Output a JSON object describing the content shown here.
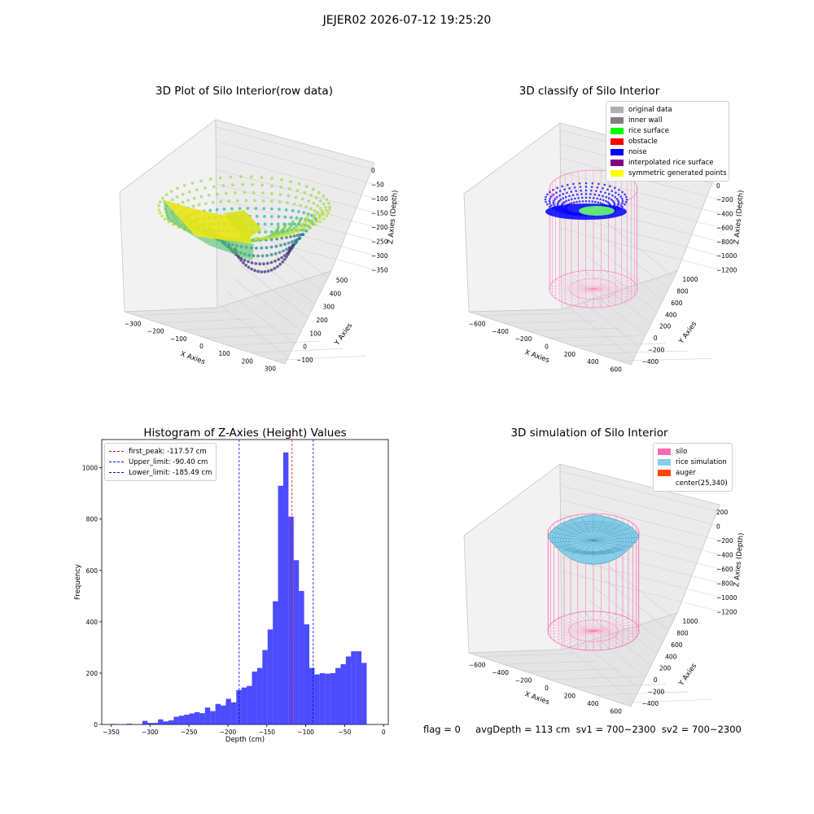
{
  "suptitle": "JEJER02 2026-07-12 19:25:20",
  "panels": {
    "raw": {
      "title": "3D Plot of Silo Interior(row data)",
      "xlabel": "X Axies",
      "ylabel": "Y Axies",
      "zlabel": "Z Axies (Depth)",
      "xticks": [
        "−300",
        "−200",
        "−100",
        "0",
        "100",
        "200",
        "300"
      ],
      "yticks": [
        "−100",
        "0",
        "100",
        "200",
        "300",
        "400",
        "500"
      ],
      "zticks": [
        "0",
        "−50",
        "−100",
        "−150",
        "−200",
        "−250",
        "−300",
        "−350"
      ]
    },
    "classify": {
      "title": "3D classify of Silo Interior",
      "xlabel": "X Axies",
      "ylabel": "Y Axies",
      "zlabel": "Z Axies (Depth)",
      "xticks": [
        "−600",
        "−400",
        "−200",
        "0",
        "200",
        "400",
        "600"
      ],
      "yticks": [
        "−400",
        "−200",
        "0",
        "200",
        "400",
        "600",
        "800",
        "1000"
      ],
      "zticks": [
        "200",
        "0",
        "−200",
        "−400",
        "−600",
        "−800",
        "−1000",
        "−1200"
      ],
      "legend": [
        {
          "label": "original data",
          "color": "#b0b0b0"
        },
        {
          "label": "inner wall",
          "color": "#808080"
        },
        {
          "label": "rice surface",
          "color": "#00ff00"
        },
        {
          "label": "obstacle",
          "color": "#ff0000"
        },
        {
          "label": "noise",
          "color": "#0000ff"
        },
        {
          "label": "interpolated rice surface",
          "color": "#800080"
        },
        {
          "label": "symmetric generated points",
          "color": "#ffff00"
        }
      ]
    },
    "simulation": {
      "title": "3D simulation of Silo Interior",
      "xlabel": "X Axies",
      "ylabel": "Y Axies",
      "zlabel": "Z Axies (Depth)",
      "xticks": [
        "−600",
        "−400",
        "−200",
        "0",
        "200",
        "400",
        "600"
      ],
      "yticks": [
        "−400",
        "−200",
        "0",
        "200",
        "400",
        "600",
        "800",
        "1000"
      ],
      "zticks": [
        "200",
        "0",
        "−200",
        "−400",
        "−600",
        "−800",
        "−1000",
        "−1200"
      ],
      "legend": [
        {
          "label": "silo",
          "color": "#ff69b4"
        },
        {
          "label": "rice simulation",
          "color": "#87ceeb"
        },
        {
          "label": "auger",
          "color": "#ff4500"
        },
        {
          "label": "center(25,340)",
          "color": ""
        }
      ]
    }
  },
  "status_line": "flag = 0     avgDepth = 113 cm  sv1 = 700~2300  sv2 = 700~2300",
  "chart_data": {
    "type": "bar",
    "title": "Histogram of Z-Axies (Height) Values",
    "xlabel": "Depth (cm)",
    "ylabel": "Frequency",
    "xlim": [
      -362,
      6
    ],
    "ylim": [
      0,
      1110
    ],
    "xticks": [
      -350,
      -300,
      -250,
      -200,
      -150,
      -100,
      -50,
      0
    ],
    "yticks": [
      0,
      200,
      400,
      600,
      800,
      1000
    ],
    "bin_width": 6.7,
    "bin_starts": [
      -350,
      -343.3,
      -336.6,
      -329.9,
      -323.2,
      -316.5,
      -309.8,
      -303.1,
      -296.4,
      -289.7,
      -283.0,
      -276.3,
      -269.6,
      -262.9,
      -256.2,
      -249.5,
      -242.8,
      -236.1,
      -229.4,
      -222.7,
      -216.0,
      -209.3,
      -202.6,
      -195.9,
      -189.2,
      -182.5,
      -175.8,
      -169.1,
      -162.4,
      -155.7,
      -149.0,
      -142.3,
      -135.6,
      -128.9,
      -122.2,
      -115.5,
      -108.8,
      -102.1,
      -95.4,
      -88.7,
      -82.0,
      -75.3,
      -68.6,
      -61.9,
      -55.2,
      -48.5,
      -41.8,
      -35.1,
      -28.4,
      -21.7,
      -15.0
    ],
    "values": [
      2,
      0,
      0,
      3,
      0,
      0,
      14,
      6,
      6,
      20,
      12,
      16,
      30,
      34,
      38,
      43,
      48,
      44,
      66,
      52,
      80,
      74,
      100,
      86,
      134,
      144,
      150,
      206,
      220,
      290,
      370,
      480,
      930,
      1060,
      810,
      640,
      520,
      390,
      220,
      195,
      200,
      198,
      200,
      220,
      235,
      265,
      285,
      285,
      240,
      0,
      0
    ],
    "reference_lines": [
      {
        "label": "first_peak: -117.57 cm",
        "x": -117.57,
        "color": "#ff0000"
      },
      {
        "label": "Upper_limit: -90.40 cm",
        "x": -90.4,
        "color": "#0000ff"
      },
      {
        "label": "Lower_limit: -185.49 cm",
        "x": -185.49,
        "color": "#0000ff"
      }
    ]
  }
}
